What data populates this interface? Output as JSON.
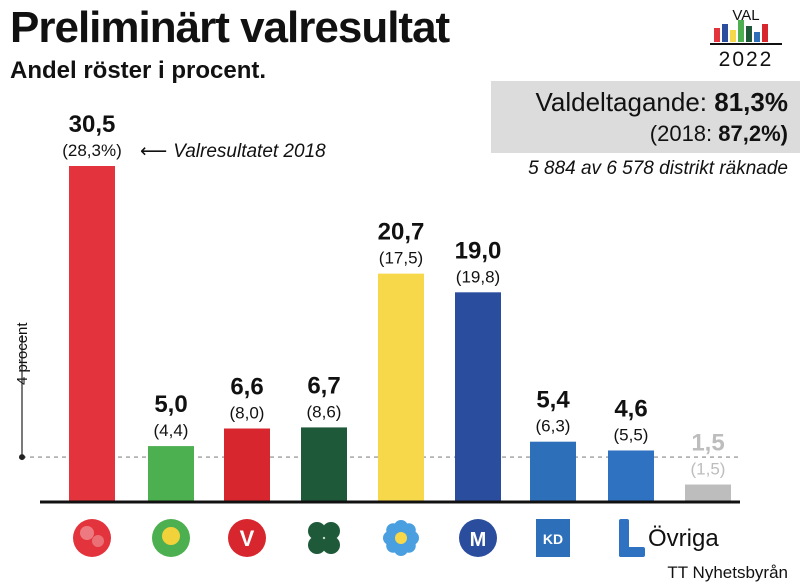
{
  "header": {
    "title": "Preliminärt valresultat",
    "subtitle": "Andel röster i procent."
  },
  "logo": {
    "top_text": "VAL",
    "year": "2022"
  },
  "turnout": {
    "label": "Valdeltagande:",
    "value": "81,3%",
    "prev_prefix": "(2018:",
    "prev_value": "87,2%)"
  },
  "districts": "5 884 av 6 578  distrikt räknade",
  "annotation": "Valresultatet 2018",
  "threshold_label": "4 procent",
  "source": "TT Nyhetsbyrån",
  "other_label": "Övriga",
  "colors": {
    "S": "#e3333c",
    "MP": "#4caf50",
    "V": "#d7262e",
    "C": "#1e5a3a",
    "SD": "#f7d84a",
    "M": "#2b4d9e",
    "KD": "#2d6fb8",
    "L": "#2f72c2",
    "Ovr": "#bdbdbd"
  },
  "chart_data": {
    "type": "bar",
    "categories": [
      "S",
      "MP",
      "V",
      "C",
      "SD",
      "M",
      "KD",
      "L",
      "Övriga"
    ],
    "series": [
      {
        "name": "2022",
        "values": [
          30.5,
          5.0,
          6.6,
          6.7,
          20.7,
          19.0,
          5.4,
          4.6,
          1.5
        ]
      },
      {
        "name": "2018",
        "values": [
          28.3,
          4.4,
          8.0,
          8.6,
          17.5,
          19.8,
          6.3,
          5.5,
          1.5
        ]
      }
    ],
    "value_labels": [
      "30,5",
      "5,0",
      "6,6",
      "6,7",
      "20,7",
      "19,0",
      "5,4",
      "4,6",
      "1,5"
    ],
    "prev_labels": [
      "(28,3%)",
      "(4,4)",
      "(8,0)",
      "(8,6)",
      "(17,5)",
      "(19,8)",
      "(6,3)",
      "(5,5)",
      "(1,5)"
    ],
    "threshold": 4,
    "ylim": [
      0,
      30.5
    ]
  }
}
